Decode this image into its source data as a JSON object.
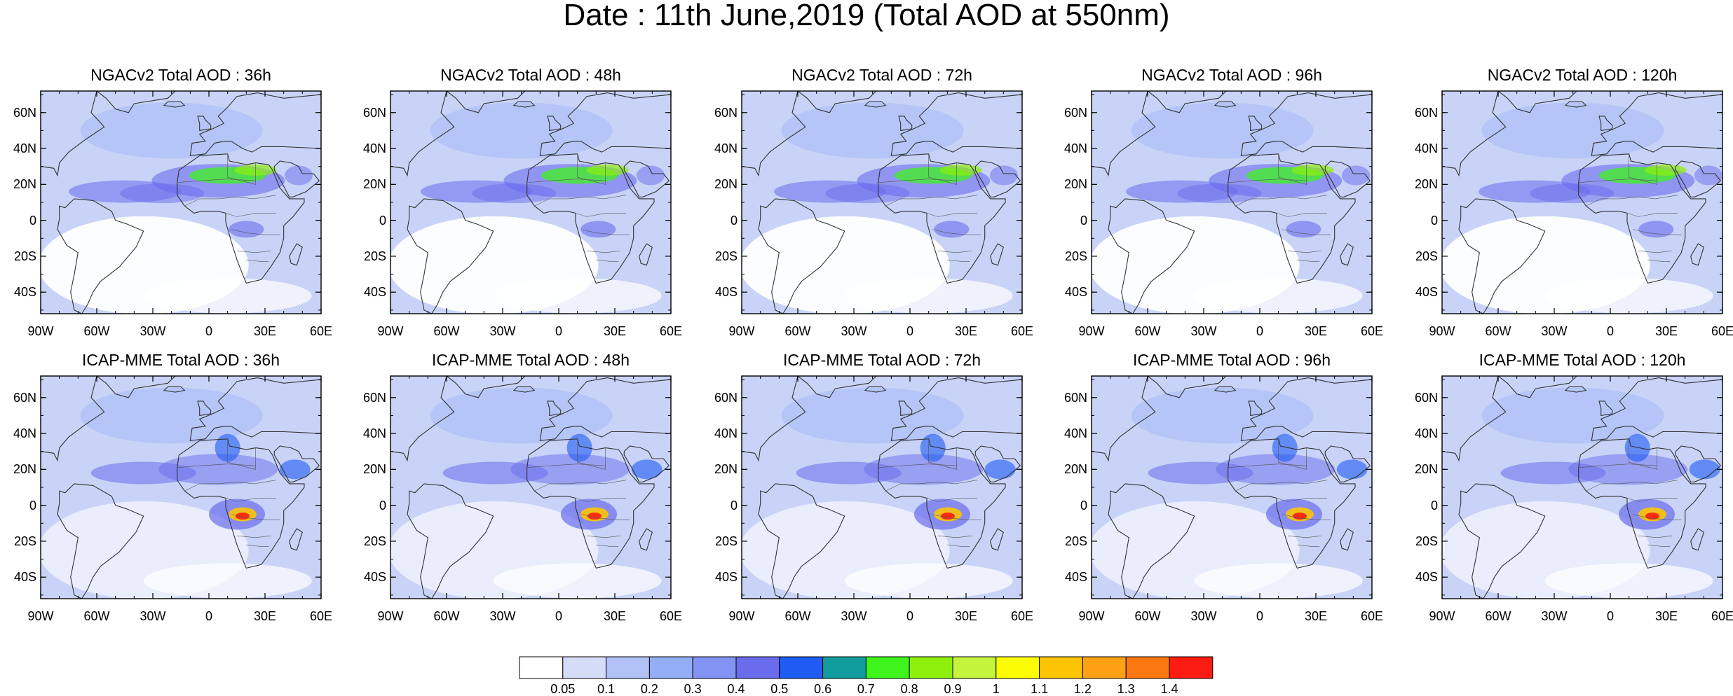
{
  "title": "Date : 11th June,2019 (Total AOD at 550nm)",
  "panels": [
    {
      "title": "NGACv2 Total AOD : 36h"
    },
    {
      "title": "NGACv2 Total AOD : 48h"
    },
    {
      "title": "NGACv2 Total AOD : 72h"
    },
    {
      "title": "NGACv2 Total AOD : 96h"
    },
    {
      "title": "NGACv2 Total AOD : 120h"
    },
    {
      "title": "ICAP-MME Total AOD : 36h"
    },
    {
      "title": "ICAP-MME Total AOD : 48h"
    },
    {
      "title": "ICAP-MME Total AOD : 72h"
    },
    {
      "title": "ICAP-MME Total AOD : 96h"
    },
    {
      "title": "ICAP-MME Total AOD : 120h"
    }
  ],
  "lat_labels": [
    "60N",
    "40N",
    "20N",
    "0",
    "20S",
    "40S"
  ],
  "lon_labels": [
    "90W",
    "60W",
    "30W",
    "0",
    "30E",
    "60E"
  ],
  "colorbar": {
    "labels": [
      "0.05",
      "0.1",
      "0.2",
      "0.3",
      "0.4",
      "0.5",
      "0.6",
      "0.7",
      "0.8",
      "0.9",
      "1",
      "1.1",
      "1.2",
      "1.3",
      "1.4"
    ],
    "colors": [
      "#ffffff",
      "#d4dcf8",
      "#b2c2f6",
      "#94aef6",
      "#8494f4",
      "#6a6cec",
      "#1e5cf4",
      "#109c9c",
      "#3ef41c",
      "#8ef00c",
      "#c4f43c",
      "#fcfc04",
      "#fcc404",
      "#fca014",
      "#fc7810",
      "#fc1c14"
    ]
  }
}
